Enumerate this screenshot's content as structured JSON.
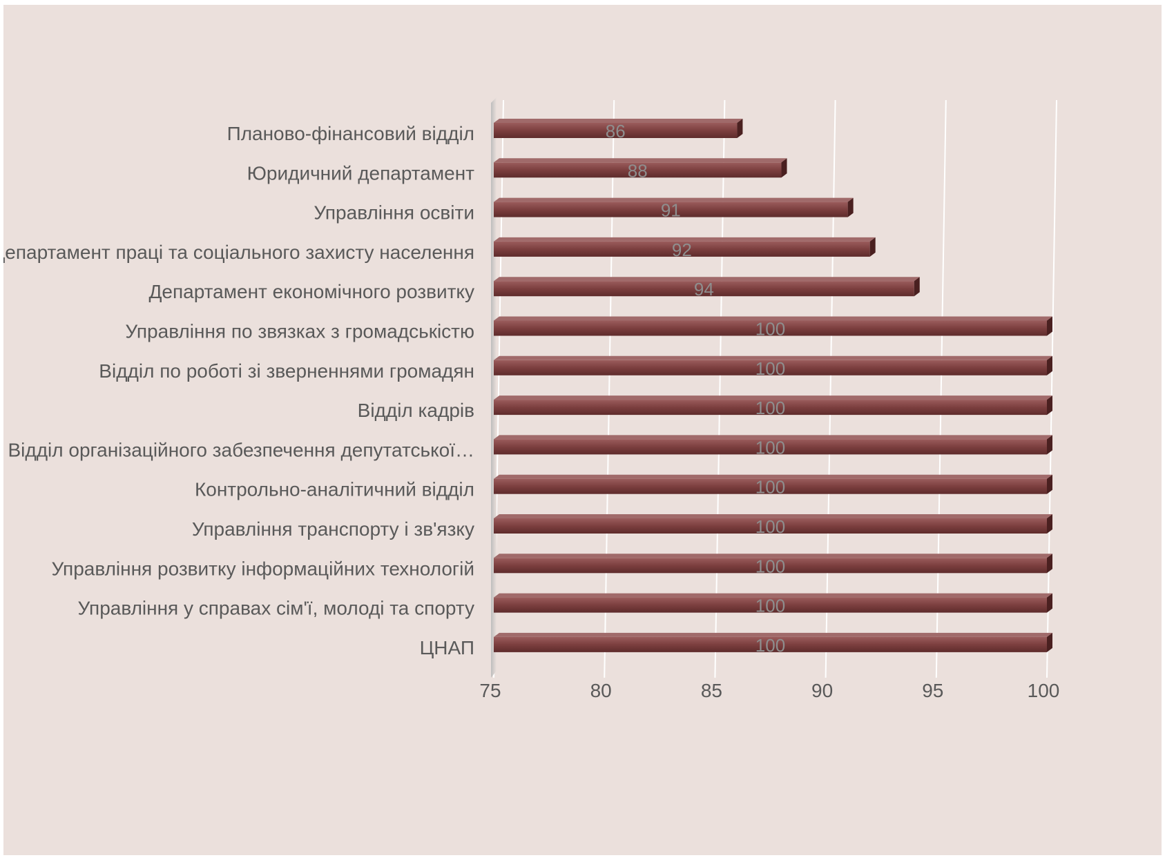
{
  "chart_data": {
    "type": "bar",
    "orientation": "horizontal",
    "title": "",
    "xlabel": "",
    "ylabel": "",
    "categories": [
      "Планово-фінансовий відділ",
      "Юридичний департамент",
      "Управління освіти",
      "Департамент праці та соціального захисту населення",
      "Департамент економічного розвитку",
      "Управління по звязках з громадськістю",
      "Відділ по роботі зі зверненнями громадян",
      "Відділ кадрів",
      "Відділ організаційного забезпечення депутатської…",
      "Контрольно-аналітичний відділ",
      "Управління транспорту і зв'язку",
      "Управління розвитку інформаційних технологій",
      "Управління у справах сім'ї, молоді та спорту",
      "ЦНАП"
    ],
    "values": [
      86,
      88,
      91,
      92,
      94,
      100,
      100,
      100,
      100,
      100,
      100,
      100,
      100,
      100
    ],
    "data_labels": [
      "86",
      "88",
      "91",
      "92",
      "94",
      "100",
      "100",
      "100",
      "100",
      "100",
      "100",
      "100",
      "100",
      "100"
    ],
    "xlim": [
      75,
      100
    ],
    "x_ticks": [
      "75",
      "80",
      "85",
      "90",
      "95",
      "100"
    ],
    "grid": true,
    "legend": "none",
    "colors": {
      "bar_front": "#7c3f3f",
      "bar_top": "#a06a6a",
      "bar_side": "#4a2020",
      "background": "#ebe0dc",
      "text": "#595959",
      "data_label": "#8e8e8e"
    }
  }
}
